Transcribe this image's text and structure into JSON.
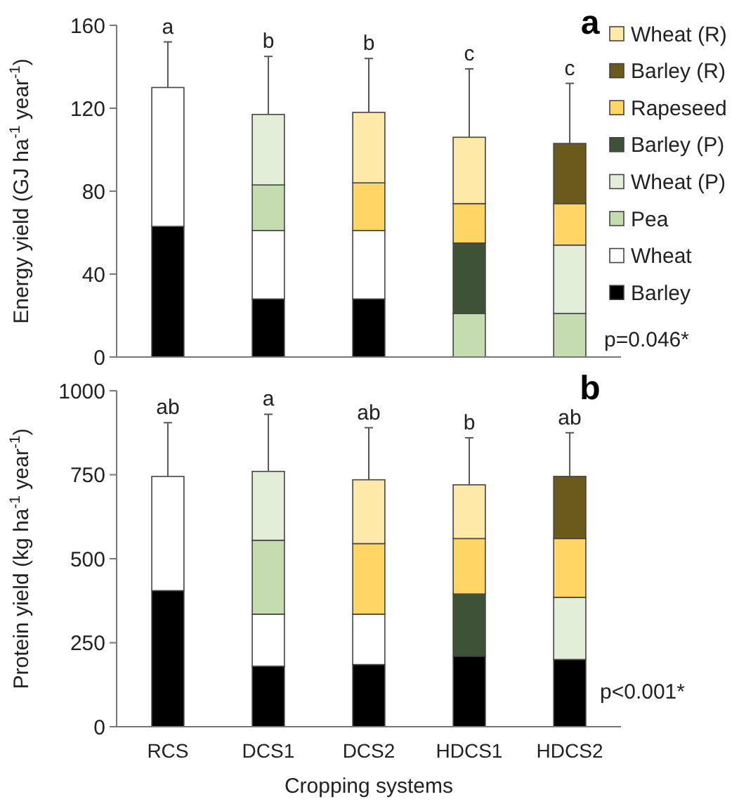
{
  "chart_data": [
    {
      "type": "bar",
      "stacked": true,
      "title": "a",
      "ylabel": "Energy yield (GJ ha$^{-1}$ year$^{-1}$)",
      "categories": [
        "RCS",
        "DCS1",
        "DCS2",
        "HDCS1",
        "HDCS2"
      ],
      "ylim": [
        0,
        160
      ],
      "yticks": [
        0,
        40,
        80,
        120,
        160
      ],
      "tick_labels": "y",
      "legend": "right",
      "series": [
        {
          "name": "Barley",
          "color": "#000000",
          "values": [
            63,
            28,
            28,
            null,
            null
          ]
        },
        {
          "name": "Wheat",
          "color": "#ffffff",
          "values": [
            67,
            33,
            33,
            null,
            null
          ],
          "errors": [
            [
              130,
              152
            ],
            null,
            null,
            null,
            null
          ]
        },
        {
          "name": "Pea",
          "color": "#c5dbb0",
          "values": [
            null,
            22,
            null,
            21,
            21
          ]
        },
        {
          "name": "Wheat (P)",
          "color": "#e3eed8",
          "values": [
            null,
            34,
            null,
            null,
            33
          ],
          "errors": [
            null,
            [
              117,
              145
            ],
            null,
            null,
            null
          ]
        },
        {
          "name": "Barley (P)",
          "color": "#3d5236",
          "values": [
            null,
            null,
            null,
            34,
            null
          ]
        },
        {
          "name": "Rapeseed",
          "color": "#ffd566",
          "values": [
            null,
            null,
            23,
            19,
            20
          ]
        },
        {
          "name": "Barley (R)",
          "color": "#6b5a1c",
          "values": [
            null,
            null,
            null,
            null,
            29
          ],
          "errors": [
            null,
            null,
            null,
            null,
            [
              103,
              132
            ]
          ]
        },
        {
          "name": "Wheat (R)",
          "color": "#ffe9a8",
          "values": [
            null,
            null,
            34,
            32,
            null
          ],
          "errors": [
            null,
            null,
            [
              118,
              144
            ],
            [
              106,
              139
            ],
            null
          ]
        }
      ],
      "annotations": [
        {
          "text": "a",
          "x": "RCS",
          "y": 152
        },
        {
          "text": "b",
          "x": "DCS1",
          "y": 145
        },
        {
          "text": "b",
          "x": "DCS2",
          "y": 144
        },
        {
          "text": "c",
          "x": "HDCS1",
          "y": 139
        },
        {
          "text": "c",
          "x": "HDCS2",
          "y": 132
        },
        "p=0.046*"
      ]
    },
    {
      "type": "bar",
      "stacked": true,
      "title": "b",
      "xlabel": "Cropping systems",
      "ylabel": "Protein yield  (kg ha$^{-1}$ year$^{-1}$)",
      "categories": [
        "RCS",
        "DCS1",
        "DCS2",
        "HDCS1",
        "HDCS2"
      ],
      "ylim": [
        0,
        1000
      ],
      "yticks": [
        0,
        250,
        500,
        750,
        1000
      ],
      "legend": false,
      "series": [
        {
          "color": "#000000",
          "values": [
            405,
            180,
            185,
            210,
            200
          ]
        },
        {
          "color": "#ffffff",
          "values": [
            340,
            155,
            150,
            null,
            null
          ],
          "errors": [
            [
              745,
              905
            ],
            null,
            null,
            null,
            null
          ]
        },
        {
          "color": "#c5dbb0",
          "values": [
            null,
            220,
            null,
            null,
            null
          ]
        },
        {
          "color": "#e3eed8",
          "values": [
            null,
            205,
            null,
            null,
            185
          ],
          "errors": [
            null,
            [
              760,
              930
            ],
            null,
            null,
            null
          ]
        },
        {
          "color": "#3d5236",
          "values": [
            null,
            null,
            null,
            185,
            null
          ]
        },
        {
          "color": "#ffd566",
          "values": [
            null,
            null,
            210,
            165,
            175
          ]
        },
        {
          "color": "#6b5a1c",
          "values": [
            null,
            null,
            null,
            null,
            185
          ],
          "errors": [
            null,
            null,
            null,
            null,
            [
              745,
              875
            ]
          ]
        },
        {
          "color": "#ffe9a8",
          "values": [
            null,
            null,
            190,
            160,
            null
          ],
          "errors": [
            null,
            null,
            [
              735,
              890
            ],
            [
              720,
              860
            ],
            null
          ]
        }
      ],
      "annotations": [
        {
          "text": "ab",
          "x": "RCS",
          "y": 905
        },
        {
          "text": "a",
          "x": "DCS1",
          "y": 930
        },
        {
          "text": "ab",
          "x": "DCS2",
          "y": 890
        },
        {
          "text": "b",
          "x": "HDCS1",
          "y": 860
        },
        {
          "text": "ab",
          "x": "HDCS2",
          "y": 875
        },
        "p<0.001*"
      ]
    }
  ]
}
